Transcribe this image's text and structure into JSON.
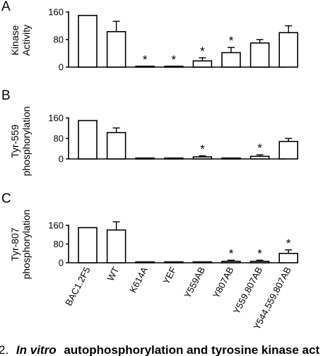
{
  "chart_data": [
    {
      "type": "bar",
      "panel": "A",
      "ylabel": [
        "Kinase",
        "Activity"
      ],
      "yticks": [
        0,
        80,
        160
      ],
      "ylim": [
        0,
        160
      ],
      "categories": [
        "BAC1.2F5",
        "WT",
        "K614A",
        "YEF",
        "Y559AB",
        "Y807AB",
        "Y559,807AB",
        "Y544,559,807AB"
      ],
      "values": [
        150,
        103,
        2,
        2,
        18,
        42,
        70,
        100
      ],
      "errors": [
        0,
        30,
        0,
        0,
        9,
        15,
        10,
        20
      ],
      "significant": [
        false,
        false,
        true,
        true,
        true,
        true,
        false,
        false
      ],
      "significance_marker": "*"
    },
    {
      "type": "bar",
      "panel": "B",
      "ylabel": [
        "Tyr-559",
        "phosphorylation"
      ],
      "yticks": [
        0,
        80,
        160
      ],
      "ylim": [
        0,
        160
      ],
      "categories": [
        "BAC1.2F5",
        "WT",
        "K614A",
        "YEF",
        "Y559AB",
        "Y807AB",
        "Y559,807AB",
        "Y544,559,807AB"
      ],
      "values": [
        150,
        103,
        1,
        1,
        8,
        1,
        10,
        68
      ],
      "errors": [
        0,
        18,
        0,
        0,
        4,
        0,
        6,
        12
      ],
      "significant": [
        false,
        false,
        false,
        false,
        true,
        false,
        true,
        false
      ],
      "significance_marker": "*"
    },
    {
      "type": "bar",
      "panel": "C",
      "ylabel": [
        "Tyr-807",
        "phosphorylation"
      ],
      "yticks": [
        0,
        80,
        160
      ],
      "ylim": [
        0,
        160
      ],
      "categories": [
        "BAC1.2F5",
        "WT",
        "K614A",
        "YEF",
        "Y559AB",
        "Y807AB",
        "Y559,807AB",
        "Y544,559,807AB"
      ],
      "values": [
        150,
        140,
        2,
        2,
        2,
        6,
        6,
        40
      ],
      "errors": [
        0,
        35,
        0,
        0,
        0,
        5,
        5,
        15
      ],
      "significant": [
        false,
        false,
        false,
        false,
        false,
        true,
        true,
        true
      ],
      "significance_marker": "*"
    }
  ],
  "caption": {
    "fig_num": "2.",
    "italic_bold": "In vitro",
    "bold_rest": "autophosphorylation and tyrosine kinase act"
  }
}
